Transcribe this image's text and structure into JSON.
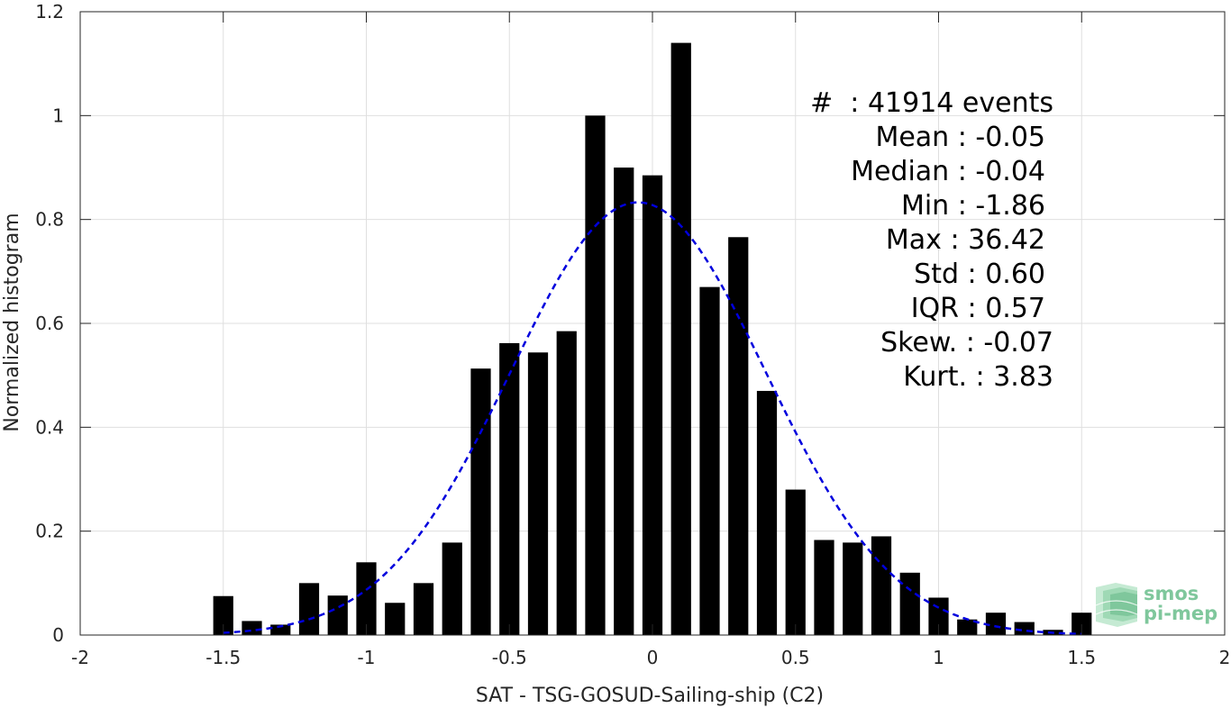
{
  "chart_data": {
    "type": "bar",
    "xlabel": "SAT - TSG-GOSUD-Sailing-ship (C2)",
    "ylabel": "Normalized histogram",
    "xlim": [
      -2,
      2
    ],
    "ylim": [
      0,
      1.2
    ],
    "xticks": [
      -2,
      -1.5,
      -1,
      -0.5,
      0,
      0.5,
      1,
      1.5,
      2
    ],
    "xtick_labels": [
      "-2",
      "-1.5",
      "-1",
      "-0.5",
      "0",
      "0.5",
      "1",
      "1.5",
      "2"
    ],
    "yticks": [
      0,
      0.2,
      0.4,
      0.6,
      0.8,
      1,
      1.2
    ],
    "ytick_labels": [
      "0",
      "0.2",
      "0.4",
      "0.6",
      "0.8",
      "1",
      "1.2"
    ],
    "grid": true,
    "bar_color": "#000000",
    "bin_width": 0.1,
    "x": [
      -1.5,
      -1.4,
      -1.3,
      -1.2,
      -1.1,
      -1.0,
      -0.9,
      -0.8,
      -0.7,
      -0.6,
      -0.5,
      -0.4,
      -0.3,
      -0.2,
      -0.1,
      0.0,
      0.1,
      0.2,
      0.3,
      0.4,
      0.5,
      0.6,
      0.7,
      0.8,
      0.9,
      1.0,
      1.1,
      1.2,
      1.3,
      1.4,
      1.5
    ],
    "values": [
      0.075,
      0.027,
      0.02,
      0.1,
      0.076,
      0.14,
      0.062,
      0.1,
      0.178,
      0.513,
      0.562,
      0.544,
      0.585,
      1.0,
      0.9,
      0.885,
      1.14,
      0.67,
      0.766,
      0.47,
      0.28,
      0.183,
      0.178,
      0.19,
      0.12,
      0.072,
      0.03,
      0.043,
      0.025,
      0.01,
      0.043
    ],
    "fit": {
      "type": "normal",
      "line_style": "dashed",
      "color": "#0000dd",
      "mean": -0.05,
      "peak": 0.833,
      "sigma": 0.447,
      "xrange": [
        -1.5,
        1.5
      ]
    },
    "annotations": [
      "#  : 41914 events",
      "Mean : -0.05",
      "Median : -0.04",
      "Min : -1.86",
      "Max : 36.42",
      "Std : 0.60",
      "IQR : 0.57",
      "Skew. : -0.07",
      "Kurt. : 3.83"
    ]
  },
  "logo": {
    "line1": "smos",
    "line2": "pi-mep",
    "color": "#7fc79c"
  }
}
